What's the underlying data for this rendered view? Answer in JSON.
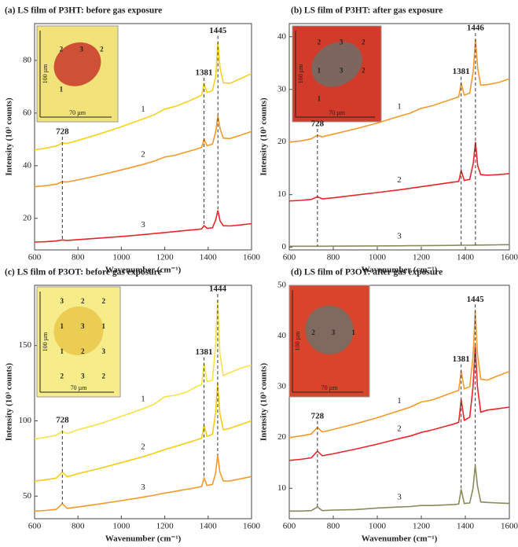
{
  "chart_data": [
    {
      "type": "line",
      "title": "(a) LS film of P3HT: before gas exposure",
      "x_label": "Wavenumber (cm⁻¹)",
      "y_label": "Intensity (10³ counts)",
      "x": [
        600,
        650,
        700,
        728,
        750,
        800,
        900,
        1000,
        1100,
        1150,
        1200,
        1250,
        1300,
        1350,
        1370,
        1381,
        1395,
        1420,
        1435,
        1445,
        1455,
        1470,
        1500,
        1550,
        1600
      ],
      "series": [
        {
          "name": "1",
          "color": "#f7d21c",
          "values": [
            46,
            46.6,
            47.5,
            48.6,
            48.5,
            49.6,
            52.1,
            54.8,
            57.8,
            59.3,
            61.5,
            62.6,
            64.2,
            66,
            66.8,
            71,
            67.8,
            68.6,
            74,
            87,
            77,
            71.5,
            71.3,
            73.1,
            75
          ]
        },
        {
          "name": "2",
          "color": "#f39a2a",
          "values": [
            32,
            32.4,
            33,
            33.9,
            33.8,
            34.6,
            36.4,
            38.4,
            40.5,
            41.7,
            43.3,
            44,
            45.2,
            46.4,
            47,
            50,
            47.6,
            48.2,
            53,
            59,
            54,
            50.5,
            50.3,
            51.6,
            53
          ]
        },
        {
          "name": "3",
          "color": "#e8262a",
          "values": [
            11,
            11.1,
            11.4,
            11.8,
            11.6,
            11.9,
            12.5,
            13.1,
            13.8,
            14.2,
            14.6,
            15,
            15.4,
            15.8,
            16,
            17.2,
            16.2,
            16.4,
            19.5,
            23,
            19,
            17.2,
            17.1,
            17.5,
            18
          ]
        }
      ],
      "annotations": [
        {
          "text": "728",
          "x": 728
        },
        {
          "text": "1381",
          "x": 1381
        },
        {
          "text": "1445",
          "x": 1445
        }
      ],
      "inset": {
        "scale_x": "70 µm",
        "scale_y": "100 µm",
        "regions": [
          "2",
          "3",
          "2",
          "1"
        ]
      },
      "xlim": [
        600,
        1600
      ],
      "xticks": [
        600,
        800,
        1000,
        1200,
        1400,
        1600
      ],
      "ylim": [
        8,
        94
      ],
      "yticks": [
        20,
        40,
        60,
        80
      ]
    },
    {
      "type": "line",
      "title": "(b) LS film of P3HT: after gas exposure",
      "x_label": "Wavenumber (cm⁻¹)",
      "y_label": "Intensity (10³ counts)",
      "x": [
        600,
        650,
        700,
        728,
        750,
        800,
        900,
        1000,
        1100,
        1150,
        1200,
        1250,
        1300,
        1350,
        1370,
        1381,
        1395,
        1420,
        1436,
        1446,
        1456,
        1470,
        1500,
        1550,
        1600
      ],
      "series": [
        {
          "name": "1",
          "color": "#f39a2a",
          "values": [
            20,
            20.2,
            20.6,
            21.3,
            21,
            21.5,
            22.5,
            23.6,
            24.9,
            25.5,
            26.4,
            26.9,
            27.6,
            28.3,
            28.6,
            31.2,
            28.9,
            29.3,
            33.5,
            39.5,
            34,
            30.8,
            30.9,
            31.3,
            32
          ]
        },
        {
          "name": "2",
          "color": "#e8262a",
          "values": [
            8.8,
            8.9,
            9.1,
            9.6,
            9.2,
            9.4,
            9.9,
            10.4,
            10.9,
            11.2,
            11.5,
            11.8,
            12.1,
            12.4,
            12.5,
            14.6,
            12.7,
            12.9,
            16,
            20,
            15.5,
            13.8,
            13.7,
            13.8,
            14
          ]
        },
        {
          "name": "3",
          "color": "#8a8a5c",
          "values": [
            0.2,
            0.2,
            0.2,
            0.2,
            0.2,
            0.21,
            0.23,
            0.26,
            0.28,
            0.3,
            0.31,
            0.33,
            0.35,
            0.37,
            0.38,
            0.39,
            0.39,
            0.4,
            0.41,
            0.42,
            0.42,
            0.43,
            0.44,
            0.47,
            0.5
          ]
        }
      ],
      "annotations": [
        {
          "text": "728",
          "x": 728
        },
        {
          "text": "1381",
          "x": 1381
        },
        {
          "text": "1446",
          "x": 1446
        }
      ],
      "inset": {
        "scale_x": "70 µm",
        "scale_y": "100 µm",
        "regions": [
          "2",
          "3",
          "2",
          "1",
          "3",
          "2",
          "1"
        ]
      },
      "xlim": [
        600,
        1600
      ],
      "xticks": [
        600,
        800,
        1000,
        1200,
        1400,
        1600
      ],
      "ylim": [
        -0.5,
        42.5
      ],
      "yticks": [
        0,
        10,
        20,
        30,
        40
      ]
    },
    {
      "type": "line",
      "title": "(c) LS film of P3OT: before gas exposure",
      "x_label": "Wavenumber (cm⁻¹)",
      "y_label": "Intensity (10³ counts)",
      "x": [
        600,
        650,
        700,
        728,
        750,
        800,
        900,
        1000,
        1100,
        1150,
        1200,
        1250,
        1300,
        1350,
        1370,
        1381,
        1395,
        1420,
        1434,
        1444,
        1454,
        1470,
        1500,
        1550,
        1600
      ],
      "series": [
        {
          "name": "1",
          "color": "#f6e443",
          "values": [
            88,
            89,
            90.5,
            93,
            91.5,
            94,
            98,
            103,
            108,
            111,
            116,
            117,
            119,
            123,
            124,
            138,
            126,
            127,
            150,
            180,
            145,
            130,
            132,
            135,
            137
          ]
        },
        {
          "name": "2",
          "color": "#f5cd10",
          "values": [
            60,
            60.8,
            62,
            66,
            62.8,
            64.9,
            68.4,
            72.2,
            76.2,
            78.4,
            81,
            83,
            85.2,
            87.5,
            88.5,
            97,
            89.7,
            91,
            105,
            125,
            105,
            94,
            95,
            97.5,
            100
          ]
        },
        {
          "name": "3",
          "color": "#f39a2a",
          "values": [
            40,
            40.5,
            41.2,
            45,
            41.9,
            42.8,
            44.8,
            47,
            49.3,
            50.6,
            52,
            53.2,
            54.5,
            55.8,
            56.4,
            62,
            57.1,
            57.8,
            65,
            77,
            66,
            60,
            60.1,
            61.5,
            63
          ]
        }
      ],
      "annotations": [
        {
          "text": "728",
          "x": 728
        },
        {
          "text": "1381",
          "x": 1381
        },
        {
          "text": "1444",
          "x": 1444
        }
      ],
      "inset": {
        "scale_x": "70 µm",
        "scale_y": "100 µm",
        "regions": [
          "3",
          "2",
          "2",
          "1",
          "3",
          "1",
          "1",
          "2",
          "3",
          "2",
          "3",
          "2"
        ]
      },
      "xlim": [
        600,
        1600
      ],
      "xticks": [
        600,
        800,
        1000,
        1200,
        1400,
        1600
      ],
      "ylim": [
        35,
        190
      ],
      "yticks": [
        50,
        100,
        150
      ]
    },
    {
      "type": "line",
      "title": "(d) LS film of P3OT: after gas exposure",
      "x_label": "Wavenumber (cm⁻¹)",
      "y_label": "Intensity (10³ counts)",
      "x": [
        600,
        650,
        700,
        728,
        750,
        800,
        900,
        1000,
        1100,
        1150,
        1200,
        1250,
        1300,
        1350,
        1370,
        1381,
        1395,
        1420,
        1435,
        1445,
        1455,
        1470,
        1500,
        1550,
        1600
      ],
      "series": [
        {
          "name": "1",
          "color": "#f39a2a",
          "values": [
            20,
            20.3,
            20.7,
            22,
            21.1,
            21.6,
            22.7,
            23.9,
            25.3,
            26,
            27,
            27.4,
            28.2,
            29,
            29.3,
            33.2,
            29.6,
            30,
            36,
            45,
            36.5,
            31.5,
            31.3,
            32.2,
            33
          ]
        },
        {
          "name": "2",
          "color": "#e8262a",
          "values": [
            15.5,
            15.7,
            16,
            17.3,
            16.4,
            16.8,
            17.7,
            18.7,
            19.8,
            20.3,
            21,
            21.5,
            22.1,
            22.7,
            23,
            27.5,
            23.4,
            24,
            30,
            38,
            30,
            25,
            25.4,
            25.7,
            26
          ]
        },
        {
          "name": "3",
          "color": "#8a8a5c",
          "values": [
            5.5,
            5.5,
            5.6,
            6.3,
            5.6,
            5.7,
            5.8,
            6.1,
            6.3,
            6.4,
            6.6,
            6.6,
            6.7,
            6.8,
            6.9,
            9.8,
            7,
            7.1,
            10,
            14.5,
            10.5,
            7.3,
            7.2,
            7.1,
            7
          ]
        }
      ],
      "annotations": [
        {
          "text": "728",
          "x": 728
        },
        {
          "text": "1381",
          "x": 1381
        },
        {
          "text": "1445",
          "x": 1445
        }
      ],
      "inset": {
        "scale_x": "70 µm",
        "scale_y": "100 µm",
        "regions": [
          "2",
          "3",
          "1"
        ]
      },
      "xlim": [
        600,
        1600
      ],
      "xticks": [
        600,
        800,
        1000,
        1200,
        1400,
        1600
      ],
      "ylim": [
        4,
        50
      ],
      "yticks": [
        10,
        20,
        30,
        40,
        50
      ]
    }
  ]
}
